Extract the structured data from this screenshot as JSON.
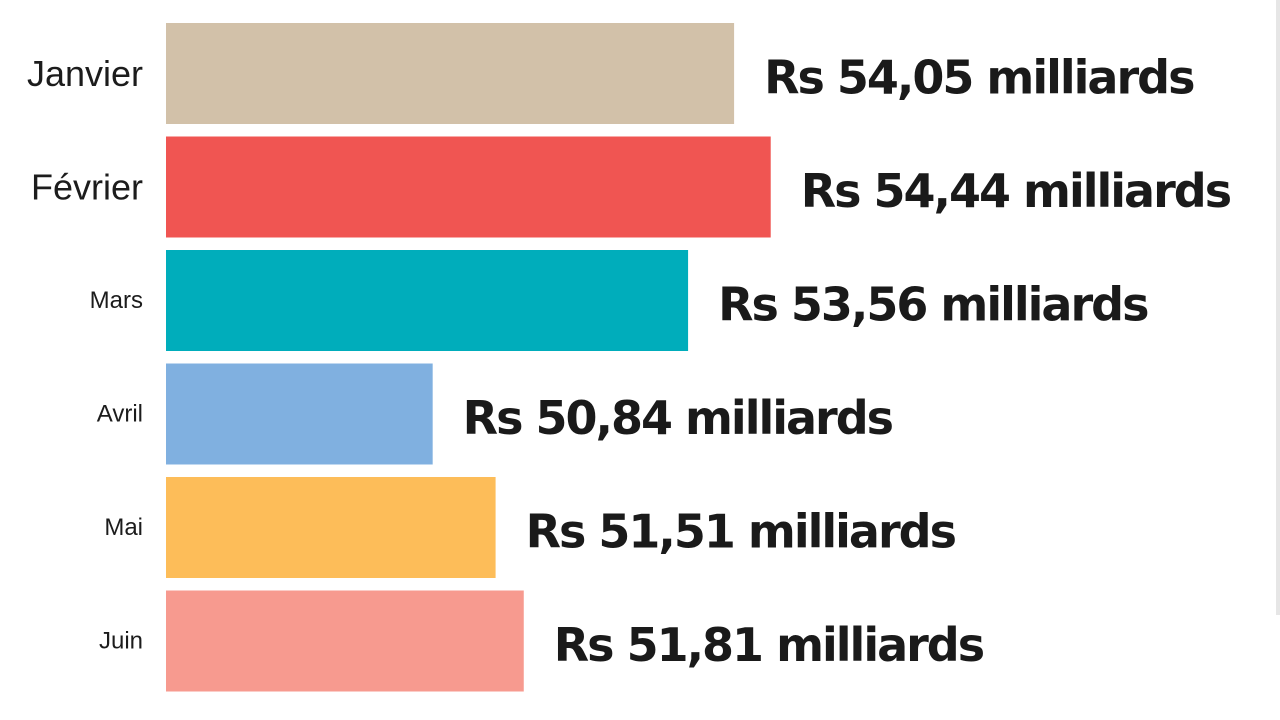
{
  "chart_data": {
    "type": "bar",
    "orientation": "horizontal",
    "title": "",
    "xlabel": "",
    "ylabel": "",
    "categories": [
      "Janvier",
      "Février",
      "Mars",
      "Avril",
      "Mai",
      "Juin"
    ],
    "values": [
      54.05,
      54.44,
      53.56,
      50.84,
      51.51,
      51.81
    ],
    "value_labels": [
      "Rs 54,05 milliards",
      "Rs 54,44 milliards",
      "Rs 53,56 milliards",
      "Rs 50,84 milliards",
      "Rs 51,51 milliards",
      "Rs 51,81 milliards"
    ],
    "colors": [
      "#d2c1a9",
      "#f05552",
      "#00adbb",
      "#80b0e0",
      "#fdbd59",
      "#f79a8f"
    ],
    "grid": false,
    "legend": "none"
  }
}
